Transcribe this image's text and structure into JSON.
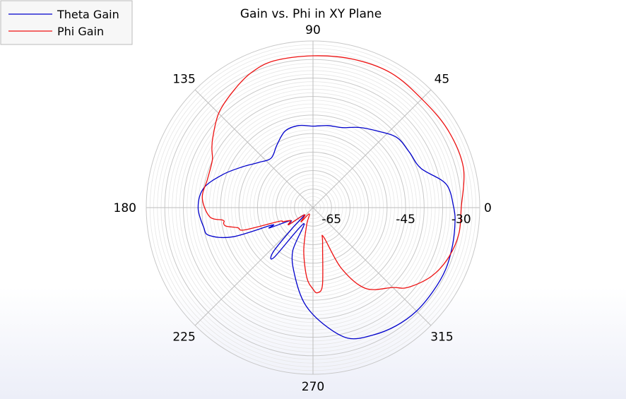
{
  "chart_data": {
    "type": "polar-line",
    "title": "Gain vs. Phi in XY Plane",
    "angle_ticks": [
      {
        "angle": 0,
        "label": "0"
      },
      {
        "angle": 45,
        "label": "45"
      },
      {
        "angle": 90,
        "label": "90"
      },
      {
        "angle": 135,
        "label": "135"
      },
      {
        "angle": 180,
        "label": "180"
      },
      {
        "angle": 225,
        "label": "225"
      },
      {
        "angle": 270,
        "label": "270"
      },
      {
        "angle": 315,
        "label": "315"
      }
    ],
    "radial_range": [
      -70,
      -25
    ],
    "radial_ticks": [
      {
        "value": -65,
        "label": "-65"
      },
      {
        "value": -45,
        "label": "-45"
      },
      {
        "value": -30,
        "label": "-30"
      }
    ],
    "grid": true,
    "legend_position": "top-left",
    "series": [
      {
        "name": "Theta Gain",
        "color": "#0000cc",
        "points": [
          [
            0,
            -32.0
          ],
          [
            10,
            -33.5
          ],
          [
            20,
            -39.0
          ],
          [
            30,
            -40.0
          ],
          [
            40,
            -40.5
          ],
          [
            50,
            -43.0
          ],
          [
            60,
            -45.0
          ],
          [
            70,
            -47.0
          ],
          [
            80,
            -47.5
          ],
          [
            90,
            -48.0
          ],
          [
            100,
            -47.5
          ],
          [
            110,
            -48.0
          ],
          [
            120,
            -50.5
          ],
          [
            130,
            -52.5
          ],
          [
            140,
            -51.0
          ],
          [
            150,
            -48.0
          ],
          [
            160,
            -44.0
          ],
          [
            170,
            -40.0
          ],
          [
            180,
            -39.0
          ],
          [
            190,
            -40.0
          ],
          [
            195,
            -41.0
          ],
          [
            200,
            -47.0
          ],
          [
            203,
            -58.0
          ],
          [
            205,
            -57.0
          ],
          [
            210,
            -63.0
          ],
          [
            215,
            -62.0
          ],
          [
            220,
            -67.0
          ],
          [
            225,
            -62.0
          ],
          [
            228,
            -54.0
          ],
          [
            232,
            -53.0
          ],
          [
            240,
            -65.0
          ],
          [
            245,
            -57.0
          ],
          [
            255,
            -51.0
          ],
          [
            265,
            -44.0
          ],
          [
            275,
            -38.5
          ],
          [
            285,
            -33.5
          ],
          [
            295,
            -32.0
          ],
          [
            305,
            -31.0
          ],
          [
            315,
            -30.5
          ],
          [
            325,
            -30.5
          ],
          [
            335,
            -30.5
          ],
          [
            345,
            -31.0
          ],
          [
            355,
            -31.5
          ],
          [
            360,
            -32.0
          ]
        ]
      },
      {
        "name": "Phi Gain",
        "color": "#ee1111",
        "points": [
          [
            0,
            -30.0
          ],
          [
            15,
            -28.0
          ],
          [
            30,
            -28.0
          ],
          [
            45,
            -28.5
          ],
          [
            60,
            -28.0
          ],
          [
            75,
            -28.5
          ],
          [
            90,
            -29.0
          ],
          [
            105,
            -29.0
          ],
          [
            115,
            -30.0
          ],
          [
            125,
            -32.0
          ],
          [
            135,
            -34.0
          ],
          [
            145,
            -37.0
          ],
          [
            150,
            -38.5
          ],
          [
            155,
            -40.0
          ],
          [
            165,
            -40.5
          ],
          [
            175,
            -40.0
          ],
          [
            185,
            -42.0
          ],
          [
            188,
            -45.5
          ],
          [
            190,
            -45.5
          ],
          [
            192,
            -46.0
          ],
          [
            195,
            -49.0
          ],
          [
            198,
            -50.5
          ],
          [
            202,
            -60.0
          ],
          [
            205,
            -61.0
          ],
          [
            210,
            -63.0
          ],
          [
            215,
            -62.0
          ],
          [
            220,
            -67.0
          ],
          [
            230,
            -65.0
          ],
          [
            240,
            -68.0
          ],
          [
            250,
            -65.0
          ],
          [
            258,
            -58.0
          ],
          [
            265,
            -51.0
          ],
          [
            270,
            -48.0
          ],
          [
            273,
            -47.0
          ],
          [
            277,
            -49.0
          ],
          [
            285,
            -60.0
          ],
          [
            290,
            -61.5
          ],
          [
            295,
            -52.0
          ],
          [
            303,
            -44.0
          ],
          [
            315,
            -39.5
          ],
          [
            320,
            -36.5
          ],
          [
            330,
            -33.0
          ],
          [
            340,
            -31.0
          ],
          [
            350,
            -30.0
          ],
          [
            360,
            -30.0
          ]
        ]
      }
    ]
  }
}
